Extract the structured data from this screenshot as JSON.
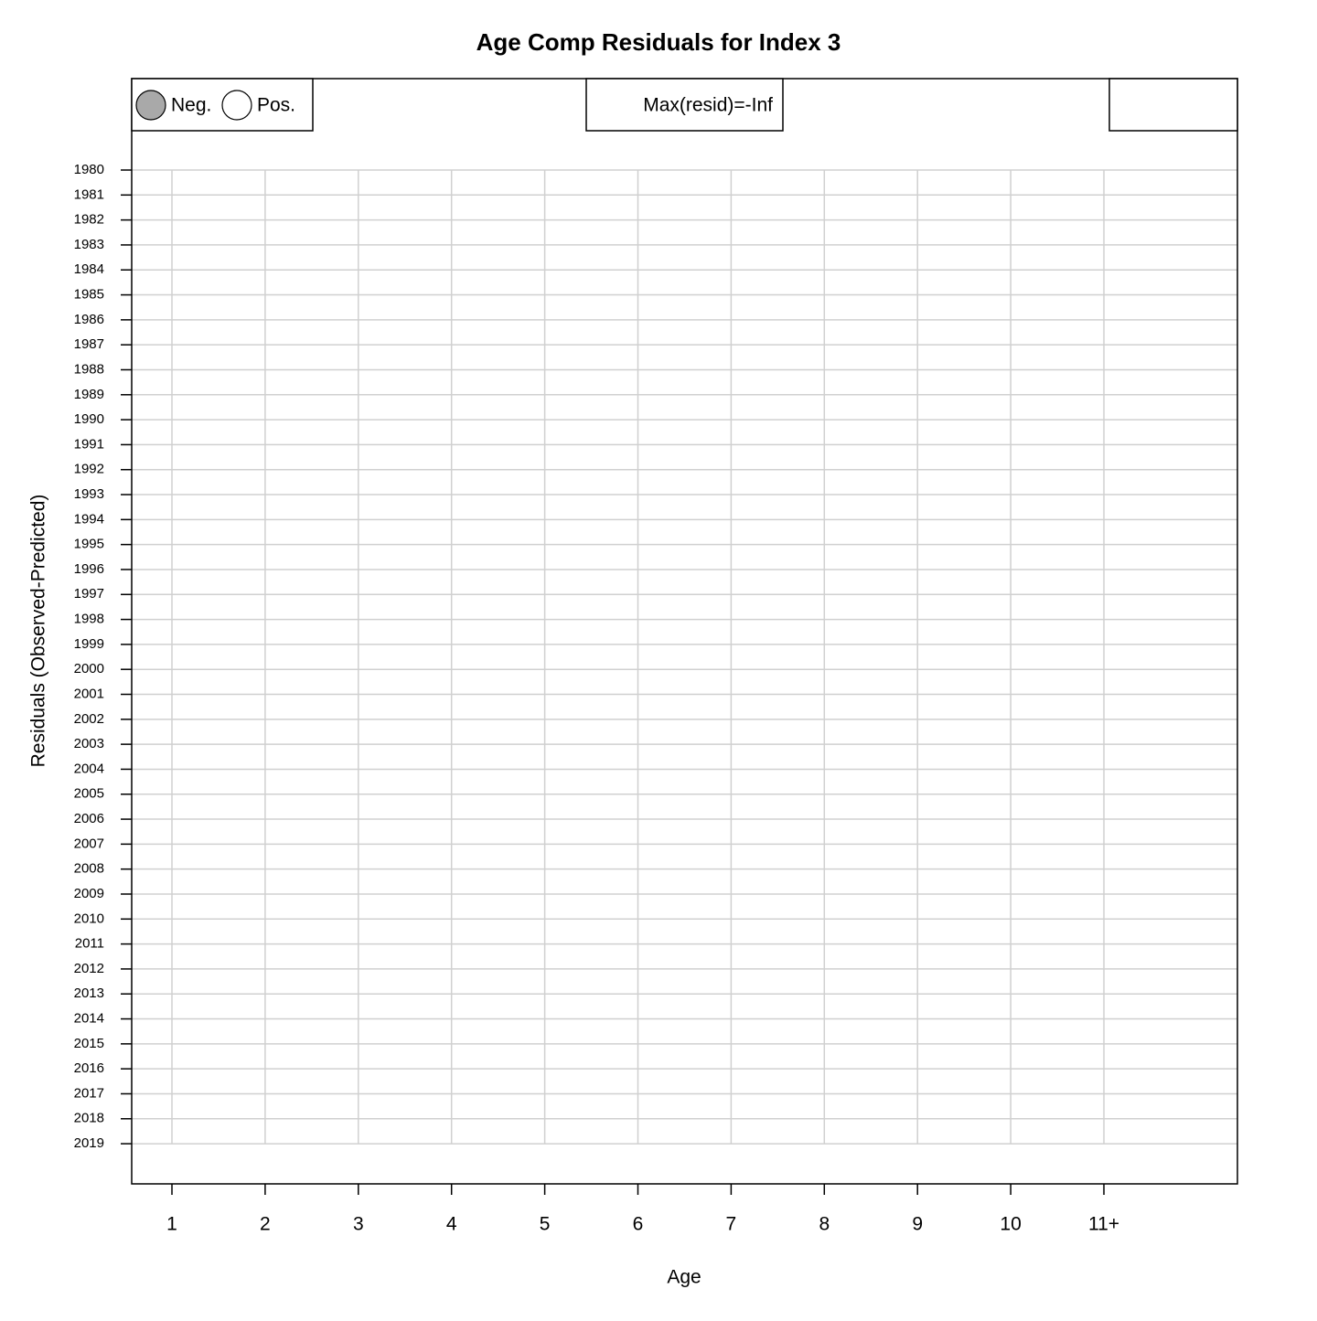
{
  "chart_data": {
    "type": "bubble",
    "title": "Age Comp Residuals for Index 3",
    "xlabel": "Age",
    "ylabel": "Residuals (Observed-Predicted)",
    "categories": [
      "1",
      "2",
      "3",
      "4",
      "5",
      "6",
      "7",
      "8",
      "9",
      "10",
      "11+"
    ],
    "y_categories": [
      "1980",
      "1981",
      "1982",
      "1983",
      "1984",
      "1985",
      "1986",
      "1987",
      "1988",
      "1989",
      "1990",
      "1991",
      "1992",
      "1993",
      "1994",
      "1995",
      "1996",
      "1997",
      "1998",
      "1999",
      "2000",
      "2001",
      "2002",
      "2003",
      "2004",
      "2005",
      "2006",
      "2007",
      "2008",
      "2009",
      "2010",
      "2011",
      "2012",
      "2013",
      "2014",
      "2015",
      "2016",
      "2017",
      "2018",
      "2019"
    ],
    "series": [
      {
        "name": "Neg.",
        "color": "#a9a9a9",
        "values": []
      },
      {
        "name": "Pos.",
        "color": "#ffffff",
        "values": []
      }
    ],
    "annotation": "Max(resid)=-Inf",
    "grid": true
  }
}
